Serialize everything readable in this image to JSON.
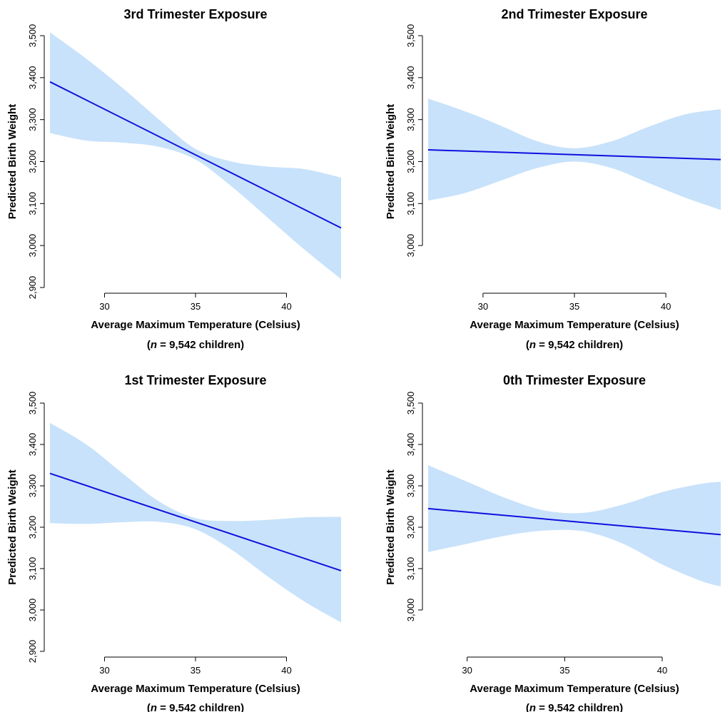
{
  "chart_data": [
    {
      "type": "line",
      "title": "3rd Trimester Exposure",
      "xlabel": "Average Maximum Temperature (Celsius)",
      "xsublabel": {
        "n_symbol": "n",
        "text": "= 9,542 children"
      },
      "ylabel": "Predicted Birth Weight",
      "xlim": [
        27,
        43
      ],
      "ylim": [
        2900,
        3500
      ],
      "xticks": [
        30,
        35,
        40
      ],
      "yticks": [
        2900,
        3000,
        3100,
        3200,
        3300,
        3400,
        3500
      ],
      "ytick_labels": [
        "2,900",
        "3,000",
        "3,100",
        "3,200",
        "3,300",
        "3,400",
        "3,500"
      ],
      "series": [
        {
          "x": [
            27,
            43
          ],
          "y": [
            3390,
            3042
          ],
          "color": "#1010e0"
        }
      ],
      "band": {
        "x": [
          27,
          29,
          31,
          33,
          35,
          37,
          39,
          41,
          43
        ],
        "lower": [
          3268,
          3250,
          3245,
          3235,
          3205,
          3140,
          3065,
          2990,
          2920
        ],
        "upper": [
          3508,
          3445,
          3375,
          3300,
          3230,
          3200,
          3188,
          3182,
          3162
        ],
        "color": "#c8e2fb"
      }
    },
    {
      "type": "line",
      "title": "2nd Trimester Exposure",
      "xlabel": "Average Maximum Temperature (Celsius)",
      "xsublabel": {
        "n_symbol": "n",
        "text": "= 9,542 children"
      },
      "ylabel": "Predicted Birth Weight",
      "xlim": [
        27,
        43
      ],
      "ylim": [
        2900,
        3500
      ],
      "xticks": [
        30,
        35,
        40
      ],
      "yticks": [
        3000,
        3100,
        3200,
        3300,
        3400,
        3500
      ],
      "ytick_labels": [
        "3,000",
        "3,100",
        "3,200",
        "3,300",
        "3,400",
        "3,500"
      ],
      "series": [
        {
          "x": [
            27,
            43
          ],
          "y": [
            3228,
            3205
          ],
          "color": "#1010e0"
        }
      ],
      "band": {
        "x": [
          27,
          29,
          31,
          33,
          35,
          37,
          39,
          41,
          43
        ],
        "lower": [
          3107,
          3125,
          3155,
          3185,
          3200,
          3185,
          3150,
          3115,
          3085
        ],
        "upper": [
          3350,
          3320,
          3285,
          3248,
          3232,
          3248,
          3282,
          3312,
          3325
        ],
        "color": "#c8e2fb"
      }
    },
    {
      "type": "line",
      "title": "1st Trimester Exposure",
      "xlabel": "Average Maximum Temperature (Celsius)",
      "xsublabel": {
        "n_symbol": "n",
        "text": "= 9,542 children"
      },
      "ylabel": "Predicted Birth Weight",
      "xlim": [
        27,
        43
      ],
      "ylim": [
        2900,
        3500
      ],
      "xticks": [
        30,
        35,
        40
      ],
      "yticks": [
        2900,
        3000,
        3100,
        3200,
        3300,
        3400,
        3500
      ],
      "ytick_labels": [
        "2,900",
        "3,000",
        "3,100",
        "3,200",
        "3,300",
        "3,400",
        "3,500"
      ],
      "series": [
        {
          "x": [
            27,
            43
          ],
          "y": [
            3330,
            3095
          ],
          "color": "#1010e0"
        }
      ],
      "band": {
        "x": [
          27,
          29,
          31,
          33,
          35,
          37,
          39,
          41,
          43
        ],
        "lower": [
          3210,
          3208,
          3212,
          3213,
          3195,
          3145,
          3080,
          3020,
          2970
        ],
        "upper": [
          3452,
          3400,
          3330,
          3262,
          3222,
          3215,
          3218,
          3224,
          3225
        ],
        "color": "#c8e2fb"
      }
    },
    {
      "type": "line",
      "title": "0th Trimester Exposure",
      "xlabel": "Average Maximum Temperature (Celsius)",
      "xsublabel": {
        "n_symbol": "n",
        "text": "= 9,542 children"
      },
      "ylabel": "Predicted Birth Weight",
      "xlim": [
        28,
        43
      ],
      "ylim": [
        2900,
        3500
      ],
      "xticks": [
        30,
        35,
        40
      ],
      "yticks": [
        3000,
        3100,
        3200,
        3300,
        3400,
        3500
      ],
      "ytick_labels": [
        "3,000",
        "3,100",
        "3,200",
        "3,300",
        "3,400",
        "3,500"
      ],
      "series": [
        {
          "x": [
            28,
            43
          ],
          "y": [
            3245,
            3182
          ],
          "color": "#1010e0"
        }
      ],
      "band": {
        "x": [
          28,
          30,
          32,
          34,
          36,
          38,
          40,
          42,
          43
        ],
        "lower": [
          3140,
          3160,
          3180,
          3192,
          3190,
          3160,
          3110,
          3070,
          3057
        ],
        "upper": [
          3350,
          3310,
          3270,
          3240,
          3235,
          3255,
          3285,
          3305,
          3310
        ],
        "color": "#c8e2fb"
      }
    }
  ]
}
